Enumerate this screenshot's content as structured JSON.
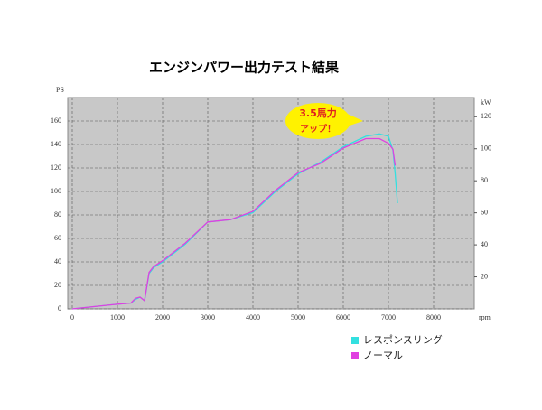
{
  "chart_data": {
    "type": "line",
    "title": "エンジンパワー出力テスト結果",
    "y_label": "PS",
    "y2_label": "kW",
    "x_label": "rpm",
    "annotation": [
      "3.5馬力",
      "アップ！"
    ],
    "xlim": [
      -100,
      8900
    ],
    "xticks": [
      0,
      1000,
      2000,
      3000,
      4000,
      5000,
      6000,
      7000,
      8000
    ],
    "ylim": [
      0,
      180
    ],
    "yticks": [
      0,
      20,
      40,
      60,
      80,
      100,
      120,
      140,
      160
    ],
    "y2lim": [
      0,
      132
    ],
    "y2ticks": [
      20,
      40,
      60,
      80,
      100,
      120
    ],
    "grid": true,
    "series": [
      {
        "name": "レスポンスリング",
        "color": "#33e0e0",
        "x": [
          0,
          500,
          1000,
          1300,
          1400,
          1500,
          1600,
          1700,
          1800,
          2000,
          2500,
          3000,
          3500,
          4000,
          4500,
          5000,
          5500,
          6000,
          6500,
          6800,
          7000,
          7100,
          7150,
          7200
        ],
        "values": [
          0,
          2,
          4,
          5,
          8,
          10,
          7,
          30,
          35,
          40,
          55,
          74,
          76,
          82,
          100,
          115,
          125,
          138,
          147,
          149,
          147,
          135,
          115,
          90
        ]
      },
      {
        "name": "ノーマル",
        "color": "#e040e0",
        "x": [
          0,
          500,
          1000,
          1300,
          1400,
          1500,
          1600,
          1700,
          1800,
          2000,
          2500,
          3000,
          3500,
          4000,
          4500,
          5000,
          5500,
          6000,
          6500,
          6800,
          7000,
          7100,
          7150
        ],
        "values": [
          0,
          2,
          4,
          5,
          9,
          10,
          7,
          31,
          36,
          41,
          56,
          74,
          76,
          83,
          101,
          116,
          124,
          137,
          145,
          145,
          141,
          136,
          122
        ]
      }
    ]
  }
}
